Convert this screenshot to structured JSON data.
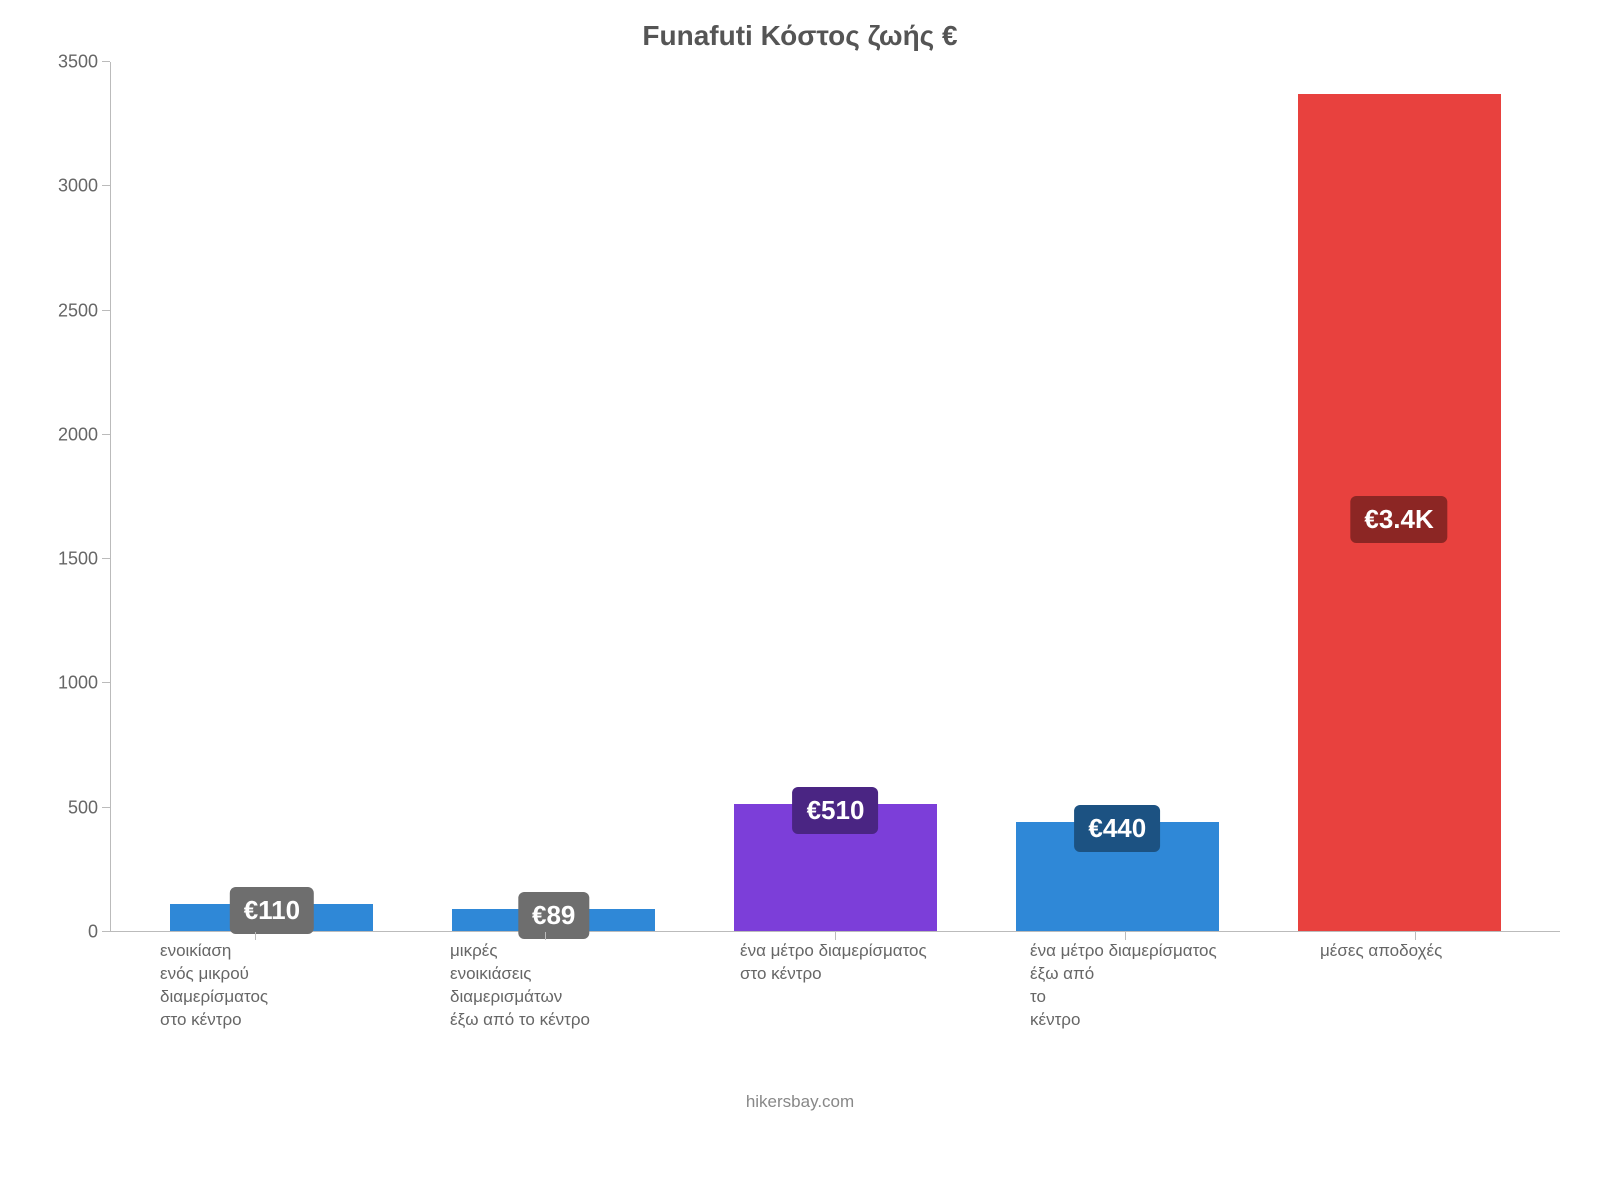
{
  "chart": {
    "type": "bar",
    "title": "Funafuti Κόστος ζωής €",
    "title_fontsize": 28,
    "title_color": "#555555",
    "background_color": "#ffffff",
    "axis_color": "#bbbbbb",
    "ylim": [
      0,
      3500
    ],
    "ytick_step": 500,
    "yticks": [
      {
        "value": 0,
        "label": "0"
      },
      {
        "value": 500,
        "label": "500"
      },
      {
        "value": 1000,
        "label": "1000"
      },
      {
        "value": 1500,
        "label": "1500"
      },
      {
        "value": 2000,
        "label": "2000"
      },
      {
        "value": 2500,
        "label": "2500"
      },
      {
        "value": 3000,
        "label": "3000"
      },
      {
        "value": 3500,
        "label": "3500"
      }
    ],
    "tick_label_color": "#666666",
    "tick_label_fontsize": 18,
    "x_label_fontsize": 17,
    "bar_width": 0.72,
    "bars": [
      {
        "label": "ενοικίαση\nενός μικρού\nδιαμερίσματος\nστο κέντρο",
        "value": 110,
        "display_value": "€110",
        "bar_color": "#2f88d7",
        "badge_bg": "#6e6e6e",
        "badge_text_color": "#ffffff"
      },
      {
        "label": "μικρές\nενοικιάσεις\nδιαμερισμάτων\nέξω από το κέντρο",
        "value": 89,
        "display_value": "€89",
        "bar_color": "#2f88d7",
        "badge_bg": "#6e6e6e",
        "badge_text_color": "#ffffff"
      },
      {
        "label": "ένα μέτρο διαμερίσματος\nστο κέντρο",
        "value": 510,
        "display_value": "€510",
        "bar_color": "#7c3ed9",
        "badge_bg": "#4a2583",
        "badge_text_color": "#ffffff"
      },
      {
        "label": "ένα μέτρο διαμερίσματος\nέξω από\nτο\nκέντρο",
        "value": 440,
        "display_value": "€440",
        "bar_color": "#2f88d7",
        "badge_bg": "#1c5282",
        "badge_text_color": "#ffffff"
      },
      {
        "label": "μέσες αποδοχές",
        "value": 3370,
        "display_value": "€3.4K",
        "bar_color": "#e8413e",
        "badge_bg": "#8c2624",
        "badge_text_color": "#ffffff"
      }
    ],
    "credit": "hikersbay.com",
    "credit_color": "#888888"
  }
}
